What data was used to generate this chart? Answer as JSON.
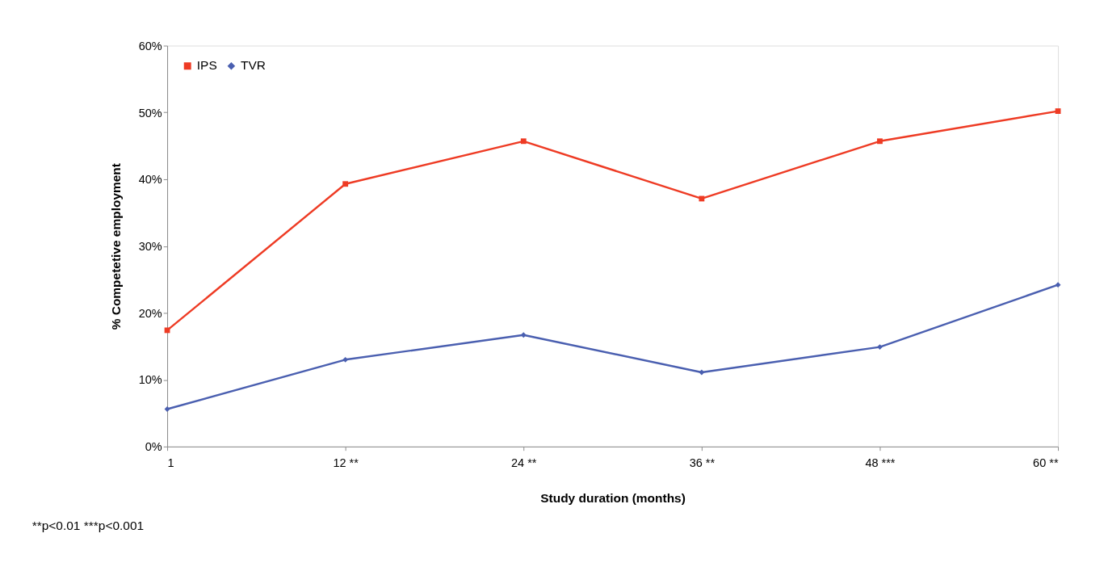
{
  "chart_data": {
    "type": "line",
    "categories": [
      "1",
      "12 **",
      "24 **",
      "36 **",
      "48 ***",
      "60 **"
    ],
    "series": [
      {
        "name": "IPS",
        "color": "#ee3b24",
        "marker": "square",
        "values": [
          17.4,
          39.3,
          45.7,
          37.1,
          45.7,
          50.2
        ]
      },
      {
        "name": "TVR",
        "color": "#4a5fb0",
        "marker": "diamond",
        "values": [
          5.6,
          13.0,
          16.7,
          11.1,
          14.9,
          24.2
        ]
      }
    ],
    "xlabel": "Study duration (months)",
    "ylabel": "% Competetive employment",
    "ylim": [
      0,
      60
    ],
    "yticks": [
      {
        "value": 0,
        "label": "0%"
      },
      {
        "value": 10,
        "label": "10%"
      },
      {
        "value": 20,
        "label": "20%"
      },
      {
        "value": 30,
        "label": "30%"
      },
      {
        "value": 40,
        "label": "40%"
      },
      {
        "value": 50,
        "label": "50%"
      },
      {
        "value": 60,
        "label": "60%"
      }
    ],
    "legend": "top left",
    "grid": false,
    "line_style": "solid",
    "annotations": [
      "**p<0.01 ***p<0.001"
    ]
  }
}
